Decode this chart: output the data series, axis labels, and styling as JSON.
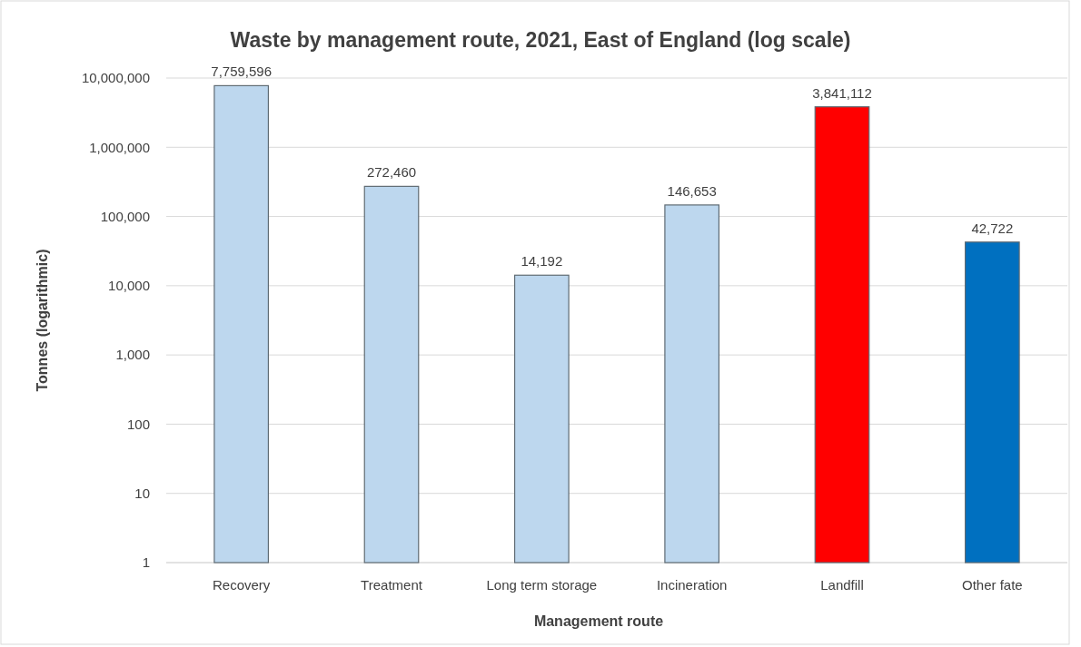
{
  "chart_data": {
    "type": "bar",
    "title": "Waste by management route, 2021, East of England (log scale)",
    "xlabel": "Management route",
    "ylabel": "Tonnes (logarithmic)",
    "categories": [
      "Recovery",
      "Treatment",
      "Long term storage",
      "Incineration",
      "Landfill",
      "Other fate"
    ],
    "values": [
      7759596,
      272460,
      14192,
      146653,
      3841112,
      42722
    ],
    "colors": [
      "#bdd7ee",
      "#bdd7ee",
      "#bdd7ee",
      "#bdd7ee",
      "#ff0000",
      "#0070c0"
    ],
    "log": true,
    "ylim": [
      1,
      10000000
    ],
    "yticks": [
      {
        "value": 1,
        "label": "1"
      },
      {
        "value": 10,
        "label": "10"
      },
      {
        "value": 100,
        "label": "100"
      },
      {
        "value": 1000,
        "label": "1,000"
      },
      {
        "value": 10000,
        "label": "10,000"
      },
      {
        "value": 100000,
        "label": "100,000"
      },
      {
        "value": 1000000,
        "label": "1,000,000"
      },
      {
        "value": 10000000,
        "label": "10,000,000"
      }
    ],
    "value_labels": [
      "7,759,596",
      "272,460",
      "14,192",
      "146,653",
      "3,841,112",
      "42,722"
    ],
    "grid": "y"
  }
}
